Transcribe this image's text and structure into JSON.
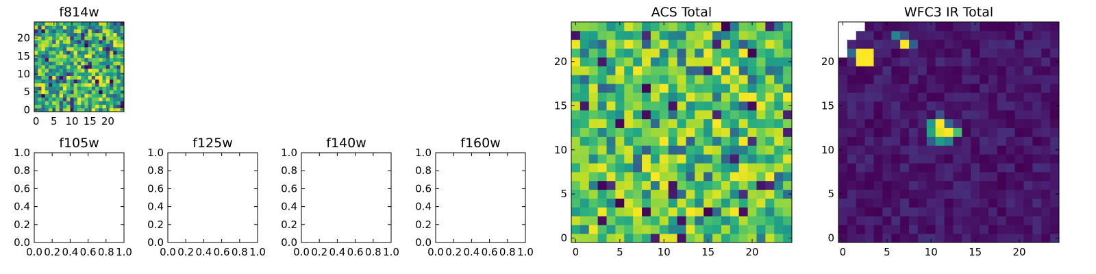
{
  "figure": {
    "background": "#ffffff",
    "colormap": "viridis"
  },
  "chart_data": [
    {
      "id": "f814w",
      "type": "heatmap",
      "title": "f814w",
      "grid_size": [
        25,
        25
      ],
      "xlim": [
        -0.5,
        24.5
      ],
      "ylim": [
        -0.5,
        24.5
      ],
      "xticks": [
        0,
        5,
        10,
        15,
        20
      ],
      "yticks": [
        0,
        5,
        10,
        15,
        20
      ],
      "xtick_labels": [
        "0",
        "5",
        "10",
        "15",
        "20"
      ],
      "ytick_labels": [
        "0",
        "5",
        "10",
        "15",
        "20"
      ],
      "values_note": "random noise field",
      "value_range": [
        0.0,
        1.0
      ],
      "cells": []
    },
    {
      "id": "f105w",
      "type": "heatmap",
      "title": "f105w",
      "empty": true,
      "xlim": [
        0,
        1
      ],
      "ylim": [
        0,
        1
      ],
      "xticks": [
        0.0,
        0.2,
        0.4,
        0.6,
        0.8,
        1.0
      ],
      "yticks": [
        0.0,
        0.2,
        0.4,
        0.6,
        0.8,
        1.0
      ],
      "xtick_labels": [
        "0.0",
        "0.2",
        "0.4",
        "0.6",
        "0.8",
        "1.0"
      ],
      "ytick_labels": [
        "0.0",
        "0.2",
        "0.4",
        "0.6",
        "0.8",
        "1.0"
      ]
    },
    {
      "id": "f125w",
      "type": "heatmap",
      "title": "f125w",
      "empty": true,
      "xlim": [
        0,
        1
      ],
      "ylim": [
        0,
        1
      ],
      "xticks": [
        0.0,
        0.2,
        0.4,
        0.6,
        0.8,
        1.0
      ],
      "yticks": [
        0.0,
        0.2,
        0.4,
        0.6,
        0.8,
        1.0
      ],
      "xtick_labels": [
        "0.0",
        "0.2",
        "0.4",
        "0.6",
        "0.8",
        "1.0"
      ],
      "ytick_labels": [
        "0.0",
        "0.2",
        "0.4",
        "0.6",
        "0.8",
        "1.0"
      ]
    },
    {
      "id": "f140w",
      "type": "heatmap",
      "title": "f140w",
      "empty": true,
      "xlim": [
        0,
        1
      ],
      "ylim": [
        0,
        1
      ],
      "xticks": [
        0.0,
        0.2,
        0.4,
        0.6,
        0.8,
        1.0
      ],
      "yticks": [
        0.0,
        0.2,
        0.4,
        0.6,
        0.8,
        1.0
      ],
      "xtick_labels": [
        "0.0",
        "0.2",
        "0.4",
        "0.6",
        "0.8",
        "1.0"
      ],
      "ytick_labels": [
        "0.0",
        "0.2",
        "0.4",
        "0.6",
        "0.8",
        "1.0"
      ]
    },
    {
      "id": "f160w",
      "type": "heatmap",
      "title": "f160w",
      "empty": true,
      "xlim": [
        0,
        1
      ],
      "ylim": [
        0,
        1
      ],
      "xticks": [
        0.0,
        0.2,
        0.4,
        0.6,
        0.8,
        1.0
      ],
      "yticks": [
        0.0,
        0.2,
        0.4,
        0.6,
        0.8,
        1.0
      ],
      "xtick_labels": [
        "0.0",
        "0.2",
        "0.4",
        "0.6",
        "0.8",
        "1.0"
      ],
      "ytick_labels": [
        "0.0",
        "0.2",
        "0.4",
        "0.6",
        "0.8",
        "1.0"
      ]
    },
    {
      "id": "acs-total",
      "type": "heatmap",
      "title": "ACS Total",
      "grid_size": [
        25,
        25
      ],
      "xlim": [
        -0.5,
        24.5
      ],
      "ylim": [
        -0.5,
        24.5
      ],
      "xticks": [
        0,
        5,
        10,
        15,
        20
      ],
      "yticks": [
        0,
        5,
        10,
        15,
        20
      ],
      "xtick_labels": [
        "0",
        "5",
        "10",
        "15",
        "20"
      ],
      "ytick_labels": [
        "0",
        "5",
        "10",
        "15",
        "20"
      ],
      "values_note": "noise field, mostly mid-to-high values",
      "value_range": [
        0.0,
        1.0
      ],
      "cells": []
    },
    {
      "id": "wfc3-ir-total",
      "type": "heatmap",
      "title": "WFC3 IR Total",
      "grid_size": [
        25,
        25
      ],
      "xlim": [
        -0.5,
        24.5
      ],
      "ylim": [
        -0.5,
        24.5
      ],
      "xticks": [
        0,
        5,
        10,
        15,
        20
      ],
      "yticks": [
        0,
        5,
        10,
        15,
        20
      ],
      "xtick_labels": [
        "0",
        "5",
        "10",
        "15",
        "20"
      ],
      "ytick_labels": [
        "0",
        "5",
        "10",
        "15",
        "20"
      ],
      "value_range": [
        0.0,
        1.0
      ],
      "background_level": 0.08,
      "nan_cells": [
        [
          0,
          24
        ],
        [
          1,
          24
        ],
        [
          2,
          24
        ],
        [
          0,
          23
        ],
        [
          1,
          23
        ],
        [
          0,
          22
        ],
        [
          0,
          21
        ]
      ],
      "highlight_cells": [
        {
          "x": 2,
          "y": 21,
          "v": 1.0
        },
        {
          "x": 3,
          "y": 21,
          "v": 1.0
        },
        {
          "x": 2,
          "y": 20,
          "v": 1.0
        },
        {
          "x": 3,
          "y": 20,
          "v": 1.0
        },
        {
          "x": 1,
          "y": 21,
          "v": 0.35
        },
        {
          "x": 7,
          "y": 22,
          "v": 1.0
        },
        {
          "x": 6,
          "y": 23,
          "v": 0.45
        },
        {
          "x": 7,
          "y": 23,
          "v": 0.25
        },
        {
          "x": 8,
          "y": 22,
          "v": 0.3
        },
        {
          "x": 11,
          "y": 13,
          "v": 1.0
        },
        {
          "x": 12,
          "y": 12,
          "v": 1.0
        },
        {
          "x": 11,
          "y": 12,
          "v": 0.95
        },
        {
          "x": 10,
          "y": 12,
          "v": 0.6
        },
        {
          "x": 10,
          "y": 13,
          "v": 0.55
        },
        {
          "x": 13,
          "y": 12,
          "v": 0.7
        },
        {
          "x": 11,
          "y": 11,
          "v": 0.55
        },
        {
          "x": 12,
          "y": 11,
          "v": 0.45
        },
        {
          "x": 10,
          "y": 11,
          "v": 0.3
        },
        {
          "x": 12,
          "y": 13,
          "v": 0.35
        },
        {
          "x": 11,
          "y": 14,
          "v": 0.25
        }
      ],
      "cells": []
    }
  ]
}
